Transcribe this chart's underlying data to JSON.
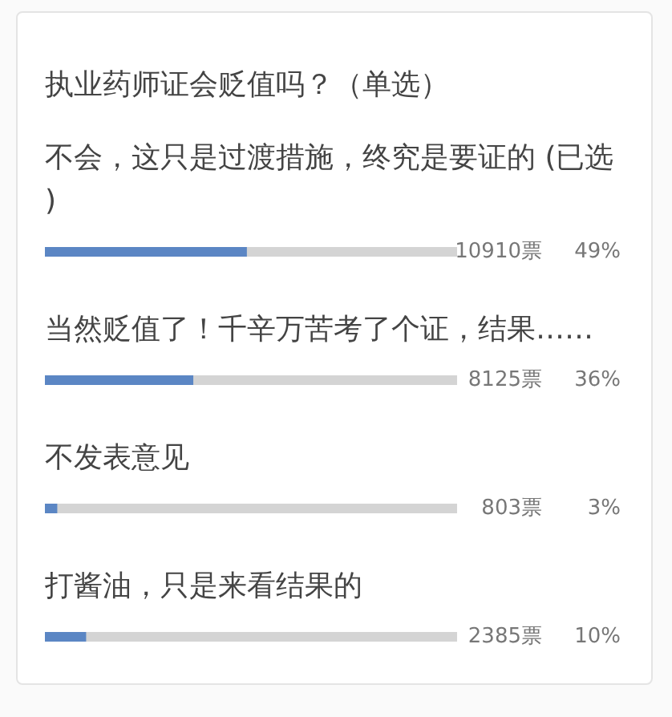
{
  "chart_data": {
    "type": "bar",
    "orientation": "horizontal",
    "title": "执业药师证会贬值吗？（单选）",
    "categories": [
      "不会，这只是过渡措施，终究是要证的 (已选)",
      "当然贬值了！千辛万苦考了个证，结果……",
      "不发表意见",
      "打酱油，只是来看结果的"
    ],
    "values": [
      49,
      36,
      3,
      10
    ],
    "value_labels": [
      "49%",
      "36%",
      "3%",
      "10%"
    ],
    "annotations": [
      "10910票",
      "8125票",
      "803票",
      "2385票"
    ],
    "color": "#5b86c4",
    "xlim": [
      0,
      100
    ],
    "tick_labels": "y"
  }
}
